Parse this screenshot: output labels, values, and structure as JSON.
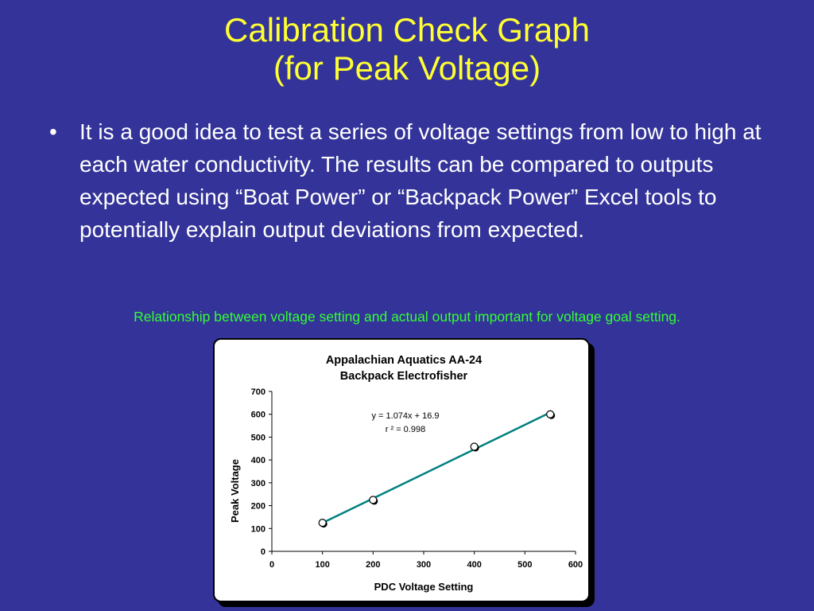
{
  "slide": {
    "title_line1": "Calibration Check Graph",
    "title_line2": "(for Peak Voltage)",
    "bullets": [
      "It is a good idea to test a series of voltage settings from low to high at each water conductivity.  The results can be compared to outputs expected using “Boat Power” or “Backpack Power” Excel tools to potentially explain output deviations from expected."
    ],
    "bullet_symbol": "•",
    "caption": "Relationship between voltage setting and actual output important for voltage goal setting."
  },
  "colors": {
    "background": "#333399",
    "title": "#ffff33",
    "body_text": "#ffffff",
    "caption": "#33ff33",
    "trendline": "#008080"
  },
  "chart_data": {
    "type": "scatter",
    "title_line1": "Appalachian Aquatics AA-24",
    "title_line2": "Backpack Electrofisher",
    "xlabel": "PDC Voltage Setting",
    "ylabel": "Peak Voltage",
    "xlim": [
      0,
      600
    ],
    "ylim": [
      0,
      700
    ],
    "xticks": [
      0,
      100,
      200,
      300,
      400,
      500,
      600
    ],
    "yticks": [
      0,
      100,
      200,
      300,
      400,
      500,
      600,
      700
    ],
    "grid": false,
    "series": [
      {
        "x": [
          100,
          200,
          400,
          550
        ],
        "y": [
          125,
          225,
          458,
          600
        ]
      }
    ],
    "trendline": {
      "slope": 1.074,
      "intercept": 16.9,
      "x_range": [
        100,
        550
      ]
    },
    "equation_text": "y = 1.074x + 16.9",
    "r2_text": "r ² = 0.998"
  }
}
